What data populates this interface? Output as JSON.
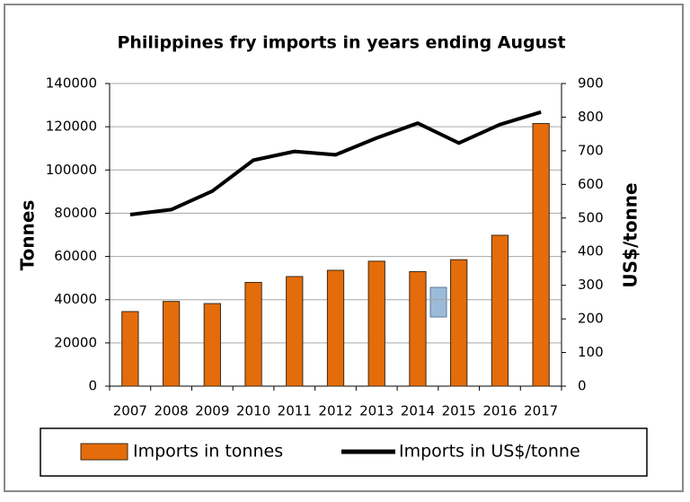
{
  "chart_data": {
    "type": "bar-line",
    "title": "Philippines fry imports in years ending August",
    "y_label": "Tonnes",
    "y2_label": "US$/tonne",
    "categories": [
      "2007",
      "2008",
      "2009",
      "2010",
      "2011",
      "2012",
      "2013",
      "2014",
      "2015",
      "2016",
      "2017"
    ],
    "series": [
      {
        "name": "Imports in tonnes",
        "type": "bar",
        "color": "#e46c0a",
        "values": [
          34500,
          39200,
          38200,
          48000,
          50700,
          53600,
          57800,
          53000,
          58500,
          69800,
          121500
        ]
      },
      {
        "name": "Imports in US$/tonne",
        "type": "line",
        "axis": "y2",
        "color": "#000000",
        "values": [
          510,
          525,
          580,
          672,
          698,
          688,
          738,
          782,
          723,
          778,
          815
        ]
      }
    ],
    "ylim": [
      0,
      140000
    ],
    "yticks": [
      0,
      20000,
      40000,
      60000,
      80000,
      100000,
      120000,
      140000
    ],
    "y2lim": [
      0,
      900
    ],
    "y2ticks": [
      0,
      100,
      200,
      300,
      400,
      500,
      600,
      700,
      800,
      900
    ],
    "grid": true,
    "legend": "bottom"
  }
}
